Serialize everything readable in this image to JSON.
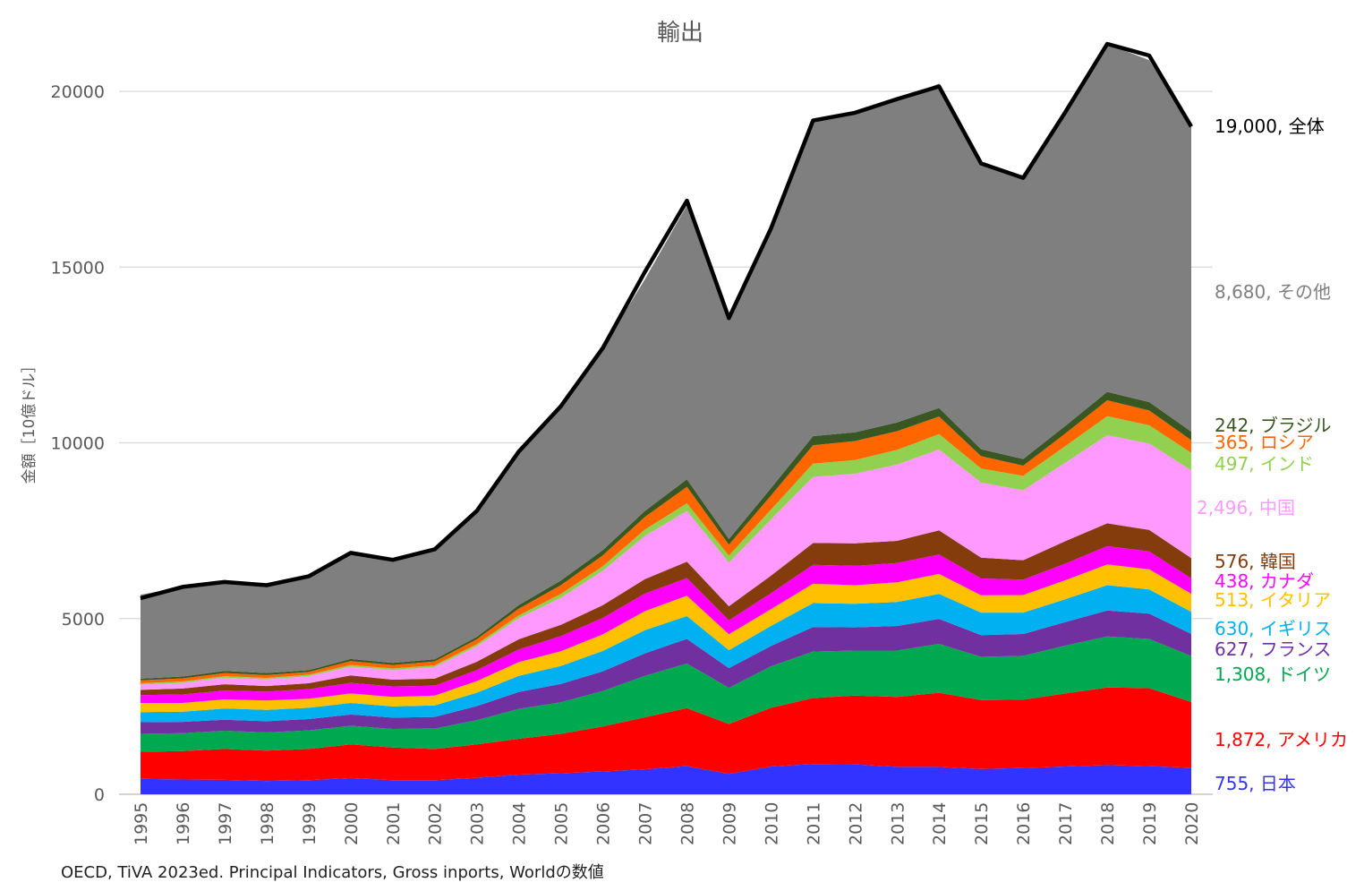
{
  "chart_data": {
    "type": "area",
    "stacked": true,
    "title": "輸出",
    "ylabel": "金額［10億ドル］",
    "xlabel": "",
    "ylim": [
      0,
      21500
    ],
    "yticks": [
      "0",
      "5000",
      "10000",
      "15000",
      "20000"
    ],
    "ytick_values": [
      0,
      5000,
      10000,
      15000,
      20000
    ],
    "grid": true,
    "legend": "right-end labels",
    "x": [
      "1995",
      "1996",
      "1997",
      "1998",
      "1999",
      "2000",
      "2001",
      "2002",
      "2003",
      "2004",
      "2005",
      "2006",
      "2007",
      "2008",
      "2009",
      "2010",
      "2011",
      "2012",
      "2013",
      "2014",
      "2015",
      "2016",
      "2017",
      "2018",
      "2019",
      "2020"
    ],
    "series": [
      {
        "name": "日本",
        "color": "#3333ff",
        "end_label": "755, 日本",
        "values": [
          440,
          420,
          410,
          380,
          400,
          460,
          400,
          400,
          470,
          560,
          600,
          650,
          710,
          800,
          580,
          790,
          860,
          850,
          780,
          780,
          720,
          750,
          790,
          830,
          800,
          755
        ]
      },
      {
        "name": "アメリカ",
        "color": "#ff0000",
        "end_label": "1,872, アメリカ",
        "values": [
          770,
          810,
          880,
          860,
          890,
          960,
          930,
          890,
          950,
          1020,
          1120,
          1280,
          1480,
          1650,
          1420,
          1670,
          1880,
          1960,
          1990,
          2110,
          1960,
          1940,
          2080,
          2210,
          2220,
          1872
        ]
      },
      {
        "name": "ドイツ",
        "color": "#00a850",
        "end_label": "1,308, ドイツ",
        "values": [
          510,
          510,
          520,
          520,
          530,
          530,
          530,
          580,
          690,
          850,
          900,
          1010,
          1180,
          1270,
          1030,
          1180,
          1320,
          1280,
          1320,
          1390,
          1230,
          1250,
          1360,
          1450,
          1400,
          1308
        ]
      },
      {
        "name": "フランス",
        "color": "#7030a0",
        "end_label": "627, フランス",
        "values": [
          330,
          320,
          310,
          320,
          320,
          320,
          320,
          330,
          400,
          480,
          520,
          560,
          640,
          700,
          560,
          580,
          700,
          660,
          700,
          710,
          620,
          620,
          670,
          740,
          720,
          627
        ]
      },
      {
        "name": "イギリス",
        "color": "#00b0f0",
        "end_label": "630, イギリス",
        "values": [
          290,
          290,
          320,
          320,
          320,
          330,
          320,
          330,
          380,
          460,
          510,
          580,
          660,
          650,
          510,
          570,
          680,
          670,
          680,
          710,
          640,
          610,
          650,
          720,
          690,
          630
        ]
      },
      {
        "name": "イタリア",
        "color": "#ffc000",
        "end_label": "513, イタリア",
        "values": [
          260,
          250,
          260,
          270,
          260,
          270,
          270,
          280,
          330,
          390,
          420,
          470,
          540,
          580,
          450,
          480,
          550,
          530,
          560,
          570,
          490,
          500,
          540,
          590,
          570,
          513
        ]
      },
      {
        "name": "カナダ",
        "color": "#ff00ff",
        "end_label": "438, カナダ",
        "values": [
          220,
          240,
          250,
          250,
          270,
          300,
          300,
          280,
          310,
          360,
          430,
          470,
          500,
          500,
          400,
          450,
          540,
          550,
          550,
          550,
          480,
          440,
          470,
          520,
          510,
          438
        ]
      },
      {
        "name": "韓国",
        "color": "#843c0c",
        "end_label": "576, 韓国",
        "values": [
          150,
          170,
          180,
          160,
          170,
          210,
          190,
          200,
          240,
          290,
          320,
          360,
          410,
          470,
          400,
          500,
          620,
          640,
          630,
          690,
          590,
          550,
          640,
          650,
          610,
          576
        ]
      },
      {
        "name": "中国",
        "color": "#ff99ff",
        "end_label": "2,496, 中国",
        "values": [
          150,
          160,
          190,
          190,
          200,
          250,
          270,
          330,
          440,
          600,
          770,
          980,
          1230,
          1440,
          1240,
          1600,
          1880,
          1980,
          2170,
          2300,
          2140,
          1990,
          2230,
          2510,
          2460,
          2496
        ]
      },
      {
        "name": "インド",
        "color": "#92d050",
        "end_label": "497, インド",
        "values": [
          40,
          40,
          40,
          40,
          40,
          50,
          50,
          50,
          60,
          80,
          110,
          130,
          180,
          220,
          200,
          280,
          380,
          390,
          420,
          440,
          400,
          410,
          470,
          540,
          520,
          497
        ]
      },
      {
        "name": "ロシア",
        "color": "#ff6600",
        "end_label": "365, ロシア",
        "values": [
          80,
          90,
          90,
          80,
          80,
          110,
          100,
          110,
          140,
          190,
          250,
          310,
          360,
          470,
          310,
          400,
          520,
          540,
          530,
          500,
          350,
          290,
          360,
          450,
          420,
          365
        ]
      },
      {
        "name": "ブラジル",
        "color": "#385723",
        "end_label": "242, ブラジル",
        "values": [
          50,
          50,
          60,
          60,
          50,
          60,
          60,
          60,
          70,
          100,
          130,
          150,
          170,
          210,
          160,
          210,
          260,
          250,
          250,
          240,
          200,
          190,
          220,
          240,
          240,
          242
        ]
      },
      {
        "name": "その他",
        "color": "#7f7f7f",
        "end_label": "8,680, その他",
        "values": [
          2390,
          2550,
          2530,
          2500,
          2670,
          3020,
          2930,
          3070,
          3630,
          4340,
          4990,
          5750,
          6590,
          7800,
          6250,
          7340,
          8930,
          9040,
          9160,
          9230,
          8080,
          7950,
          8940,
          9900,
          9730,
          8680
        ]
      }
    ],
    "total": {
      "name": "全体",
      "color": "#000000",
      "end_label": "19,000, 全体",
      "values": [
        5580,
        5900,
        6040,
        5950,
        6200,
        6870,
        6670,
        6970,
        8060,
        9750,
        11040,
        12700,
        14860,
        16890,
        13550,
        16100,
        19170,
        19390,
        19780,
        20140,
        17950,
        17540,
        19400,
        21350,
        21020,
        19000
      ]
    }
  },
  "source_note": "OECD, TiVA 2023ed. Principal Indicators, Gross inports, Worldの数値"
}
